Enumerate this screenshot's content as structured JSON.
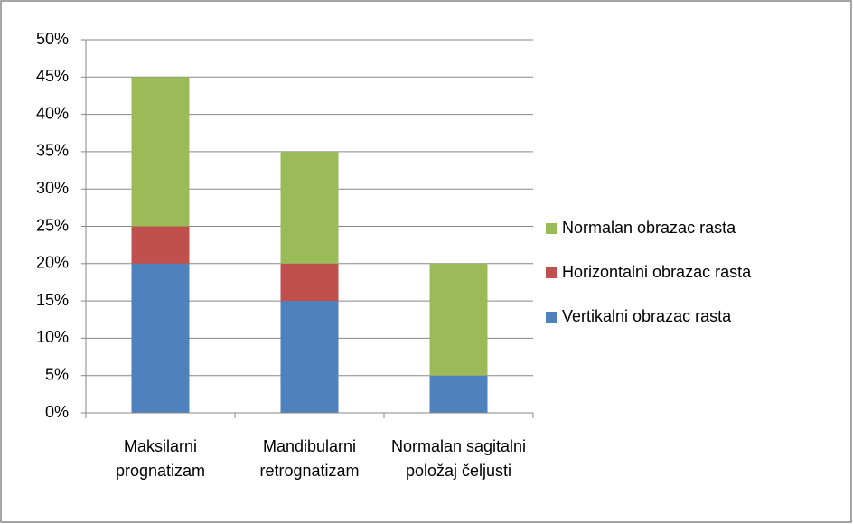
{
  "chart_data": {
    "type": "stacked_bar",
    "categories": [
      "Maksilarni prognatizam",
      "Mandibularni retrognatizam",
      "Normalan sagitalni položaj čeljusti"
    ],
    "series": [
      {
        "name": "Vertikalni obrazac rasta",
        "color": "#4f81bd",
        "values": [
          20,
          15,
          5
        ]
      },
      {
        "name": "Horizontalni obrazac rasta",
        "color": "#c0504d",
        "values": [
          5,
          5,
          0
        ]
      },
      {
        "name": "Normalan obrazac rasta",
        "color": "#9bbb59",
        "values": [
          20,
          15,
          15
        ]
      }
    ],
    "ylim": [
      0,
      50
    ],
    "yticks": [
      {
        "value": 0,
        "label": "0%"
      },
      {
        "value": 5,
        "label": "5%"
      },
      {
        "value": 10,
        "label": "10%"
      },
      {
        "value": 15,
        "label": "15%"
      },
      {
        "value": 20,
        "label": "20%"
      },
      {
        "value": 25,
        "label": "25%"
      },
      {
        "value": 30,
        "label": "30%"
      },
      {
        "value": 35,
        "label": "35%"
      },
      {
        "value": 40,
        "label": "40%"
      },
      {
        "value": 45,
        "label": "45%"
      },
      {
        "value": 50,
        "label": "50%"
      }
    ],
    "grid": true,
    "legend": "right"
  }
}
